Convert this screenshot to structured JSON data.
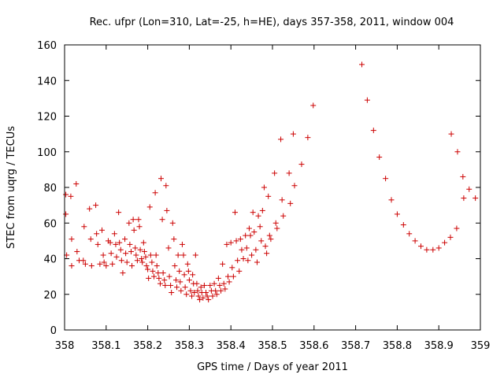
{
  "chart_data": {
    "type": "scatter",
    "title": "Rec. ufpr (Lon=310, Lat=-25, h=HE), days 357-358, 2011, window 004",
    "xlabel": "GPS time / Days of year 2011",
    "ylabel": "STEC from uqrg / TECUs",
    "xlim": [
      358,
      359
    ],
    "ylim": [
      0,
      160
    ],
    "xticks": [
      "358",
      "358.1",
      "358.2",
      "358.3",
      "358.4",
      "358.5",
      "358.6",
      "358.7",
      "358.8",
      "358.9",
      "359"
    ],
    "yticks": [
      "0",
      "20",
      "40",
      "60",
      "80",
      "100",
      "120",
      "140",
      "160"
    ],
    "grid": false,
    "marker": "plus",
    "color": "#cc0000",
    "points": [
      [
        358.003,
        76
      ],
      [
        358.003,
        65
      ],
      [
        358.005,
        42
      ],
      [
        358.015,
        75
      ],
      [
        358.017,
        51
      ],
      [
        358.017,
        36
      ],
      [
        358.028,
        82
      ],
      [
        358.03,
        44
      ],
      [
        358.035,
        39
      ],
      [
        358.045,
        39
      ],
      [
        358.047,
        58
      ],
      [
        358.05,
        37
      ],
      [
        358.06,
        68
      ],
      [
        358.063,
        51
      ],
      [
        358.065,
        36
      ],
      [
        358.075,
        70
      ],
      [
        358.077,
        54
      ],
      [
        358.08,
        48
      ],
      [
        358.085,
        37
      ],
      [
        358.09,
        56
      ],
      [
        358.093,
        42
      ],
      [
        358.095,
        38
      ],
      [
        358.1,
        36
      ],
      [
        358.105,
        50
      ],
      [
        358.11,
        49
      ],
      [
        358.112,
        43
      ],
      [
        358.115,
        37
      ],
      [
        358.12,
        54
      ],
      [
        358.123,
        48
      ],
      [
        358.125,
        41
      ],
      [
        358.13,
        66
      ],
      [
        358.132,
        49
      ],
      [
        358.135,
        45
      ],
      [
        358.137,
        39
      ],
      [
        358.14,
        32
      ],
      [
        358.145,
        51
      ],
      [
        358.147,
        43
      ],
      [
        358.15,
        38
      ],
      [
        358.155,
        60
      ],
      [
        358.157,
        48
      ],
      [
        358.16,
        44
      ],
      [
        358.162,
        36
      ],
      [
        358.165,
        62
      ],
      [
        358.167,
        56
      ],
      [
        358.17,
        46
      ],
      [
        358.172,
        42
      ],
      [
        358.175,
        39
      ],
      [
        358.178,
        62
      ],
      [
        358.18,
        58
      ],
      [
        358.182,
        45
      ],
      [
        358.185,
        40
      ],
      [
        358.187,
        38
      ],
      [
        358.19,
        49
      ],
      [
        358.192,
        44
      ],
      [
        358.195,
        41
      ],
      [
        358.197,
        36
      ],
      [
        358.2,
        34
      ],
      [
        358.202,
        29
      ],
      [
        358.205,
        69
      ],
      [
        358.207,
        42
      ],
      [
        358.21,
        38
      ],
      [
        358.212,
        33
      ],
      [
        358.215,
        30
      ],
      [
        358.218,
        77
      ],
      [
        358.22,
        42
      ],
      [
        358.222,
        36
      ],
      [
        358.225,
        32
      ],
      [
        358.227,
        29
      ],
      [
        358.23,
        26
      ],
      [
        358.232,
        85
      ],
      [
        358.235,
        62
      ],
      [
        358.237,
        32
      ],
      [
        358.24,
        28
      ],
      [
        358.242,
        25
      ],
      [
        358.244,
        81
      ],
      [
        358.246,
        67
      ],
      [
        358.25,
        46
      ],
      [
        358.252,
        30
      ],
      [
        358.255,
        25
      ],
      [
        358.257,
        21
      ],
      [
        358.26,
        60
      ],
      [
        358.263,
        51
      ],
      [
        358.265,
        36
      ],
      [
        358.268,
        28
      ],
      [
        358.27,
        24
      ],
      [
        358.273,
        42
      ],
      [
        358.276,
        33
      ],
      [
        358.278,
        27
      ],
      [
        358.28,
        22
      ],
      [
        358.283,
        48
      ],
      [
        358.286,
        42
      ],
      [
        358.288,
        31
      ],
      [
        358.29,
        24
      ],
      [
        358.293,
        20
      ],
      [
        358.296,
        37
      ],
      [
        358.298,
        33
      ],
      [
        358.3,
        28
      ],
      [
        358.303,
        22
      ],
      [
        358.306,
        19
      ],
      [
        358.308,
        31
      ],
      [
        358.31,
        26
      ],
      [
        358.312,
        21
      ],
      [
        358.315,
        42
      ],
      [
        358.318,
        26
      ],
      [
        358.32,
        22
      ],
      [
        358.322,
        19
      ],
      [
        358.325,
        17
      ],
      [
        358.328,
        24
      ],
      [
        358.33,
        21
      ],
      [
        358.333,
        18
      ],
      [
        358.336,
        25
      ],
      [
        358.34,
        21
      ],
      [
        358.343,
        19
      ],
      [
        358.346,
        17
      ],
      [
        358.35,
        25
      ],
      [
        358.353,
        22
      ],
      [
        358.356,
        19
      ],
      [
        358.36,
        26
      ],
      [
        358.363,
        22
      ],
      [
        358.366,
        20
      ],
      [
        358.37,
        29
      ],
      [
        358.373,
        25
      ],
      [
        358.376,
        22
      ],
      [
        358.38,
        37
      ],
      [
        358.383,
        26
      ],
      [
        358.386,
        23
      ],
      [
        358.39,
        48
      ],
      [
        358.393,
        30
      ],
      [
        358.396,
        27
      ],
      [
        358.4,
        49
      ],
      [
        358.403,
        35
      ],
      [
        358.406,
        30
      ],
      [
        358.41,
        66
      ],
      [
        358.413,
        50
      ],
      [
        358.416,
        39
      ],
      [
        358.42,
        33
      ],
      [
        358.423,
        51
      ],
      [
        358.426,
        45
      ],
      [
        358.43,
        40
      ],
      [
        358.435,
        53
      ],
      [
        358.438,
        46
      ],
      [
        358.441,
        39
      ],
      [
        358.444,
        57
      ],
      [
        358.447,
        53
      ],
      [
        358.45,
        42
      ],
      [
        358.453,
        66
      ],
      [
        358.456,
        55
      ],
      [
        358.46,
        45
      ],
      [
        358.463,
        38
      ],
      [
        358.466,
        64
      ],
      [
        358.47,
        58
      ],
      [
        358.473,
        50
      ],
      [
        358.476,
        67
      ],
      [
        358.48,
        80
      ],
      [
        358.483,
        47
      ],
      [
        358.486,
        43
      ],
      [
        358.49,
        75
      ],
      [
        358.493,
        53
      ],
      [
        358.496,
        51
      ],
      [
        358.505,
        88
      ],
      [
        358.508,
        60
      ],
      [
        358.511,
        57
      ],
      [
        358.52,
        107
      ],
      [
        358.523,
        73
      ],
      [
        358.526,
        64
      ],
      [
        358.54,
        88
      ],
      [
        358.543,
        71
      ],
      [
        358.55,
        110
      ],
      [
        358.553,
        81
      ],
      [
        358.57,
        93
      ],
      [
        358.585,
        108
      ],
      [
        358.598,
        126
      ],
      [
        358.715,
        149
      ],
      [
        358.728,
        129
      ],
      [
        358.743,
        112
      ],
      [
        358.757,
        97
      ],
      [
        358.772,
        85
      ],
      [
        358.786,
        73
      ],
      [
        358.8,
        65
      ],
      [
        358.815,
        59
      ],
      [
        358.829,
        54
      ],
      [
        358.843,
        50
      ],
      [
        358.857,
        47
      ],
      [
        358.871,
        45
      ],
      [
        358.886,
        45
      ],
      [
        358.9,
        46
      ],
      [
        358.914,
        49
      ],
      [
        358.928,
        52
      ],
      [
        358.93,
        110
      ],
      [
        358.943,
        57
      ],
      [
        358.945,
        100
      ],
      [
        358.958,
        86
      ],
      [
        358.96,
        74
      ],
      [
        358.973,
        79
      ],
      [
        358.988,
        74
      ]
    ]
  }
}
